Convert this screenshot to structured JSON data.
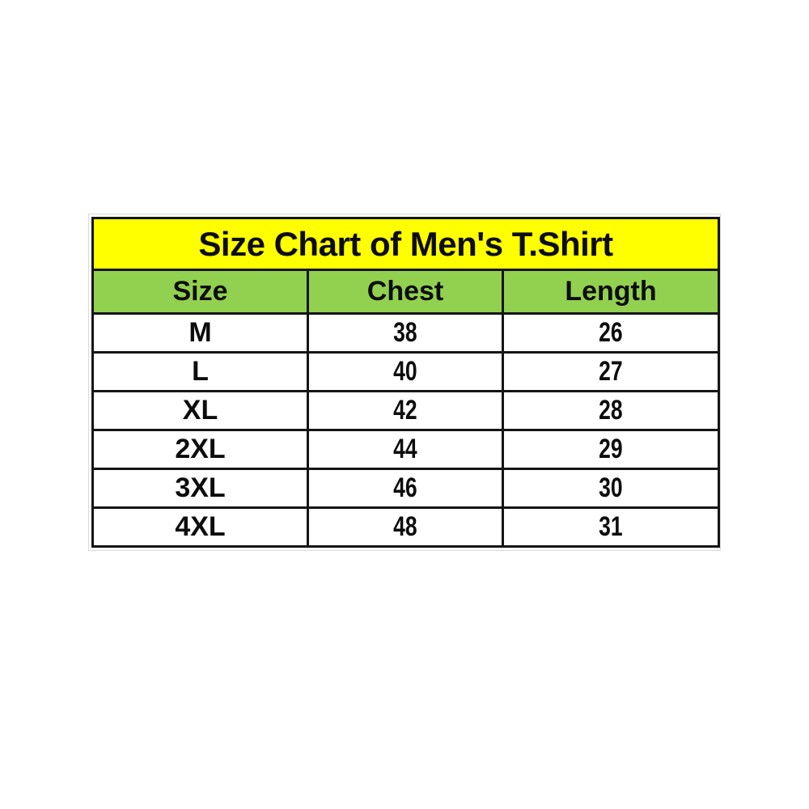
{
  "colors": {
    "title_bg": "#ffff00",
    "header_bg": "#92d050",
    "border": "#151515",
    "text": "#0d0d0d",
    "page_bg": "#ffffff"
  },
  "chart_data": {
    "type": "table",
    "title": "Size Chart of Men's T.Shirt",
    "columns": [
      "Size",
      "Chest",
      "Length"
    ],
    "rows": [
      [
        "M",
        "38",
        "26"
      ],
      [
        "L",
        "40",
        "27"
      ],
      [
        "XL",
        "42",
        "28"
      ],
      [
        "2XL",
        "44",
        "29"
      ],
      [
        "3XL",
        "46",
        "30"
      ],
      [
        "4XL",
        "48",
        "31"
      ]
    ]
  }
}
